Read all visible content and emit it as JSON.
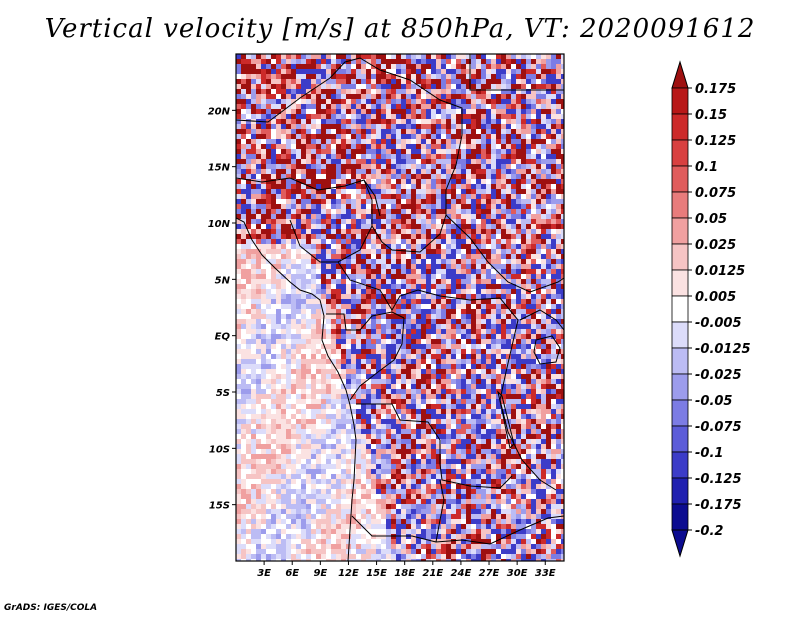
{
  "title": "Vertical velocity [m/s] at 850hPa, VT: 2020091612",
  "credit": "GrADS: IGES/COLA",
  "map": {
    "lon_labels": [
      "3E",
      "6E",
      "9E",
      "12E",
      "15E",
      "18E",
      "21E",
      "24E",
      "27E",
      "30E",
      "33E"
    ],
    "lat_labels": [
      "20N",
      "15N",
      "10N",
      "5N",
      "EQ",
      "5S",
      "10S",
      "15S"
    ],
    "lon_range": [
      0,
      35
    ],
    "lat_range": [
      -20,
      25
    ]
  },
  "colorbar": {
    "labels": [
      "0.175",
      "0.15",
      "0.125",
      "0.1",
      "0.075",
      "0.05",
      "0.025",
      "0.0125",
      "0.005",
      "-0.005",
      "-0.0125",
      "-0.025",
      "-0.05",
      "-0.075",
      "-0.1",
      "-0.125",
      "-0.175",
      "-0.2"
    ],
    "colors": [
      "#9e1010",
      "#b81818",
      "#cc2a2a",
      "#d84040",
      "#e05c5c",
      "#e87c7c",
      "#f0a0a0",
      "#f6c4c4",
      "#fbe2e2",
      "#ffffff",
      "#dcdcfa",
      "#bcbcf4",
      "#9c9cec",
      "#7c7ce4",
      "#5c5cd8",
      "#3c3cc8",
      "#2020b0",
      "#0c0c90"
    ]
  },
  "chart_data": {
    "type": "heatmap",
    "title": "Vertical velocity [m/s] at 850hPa, VT: 2020091612",
    "variable": "Vertical velocity",
    "units": "m/s",
    "level": "850hPa",
    "valid_time": "2020091612",
    "x_ticks": [
      "3E",
      "6E",
      "9E",
      "12E",
      "15E",
      "18E",
      "21E",
      "24E",
      "27E",
      "30E",
      "33E"
    ],
    "y_ticks": [
      "20N",
      "15N",
      "10N",
      "5N",
      "EQ",
      "5S",
      "10S",
      "15S"
    ],
    "color_levels": [
      0.175,
      0.15,
      0.125,
      0.1,
      0.075,
      0.05,
      0.025,
      0.0125,
      0.005,
      -0.005,
      -0.0125,
      -0.025,
      -0.05,
      -0.075,
      -0.1,
      -0.125,
      -0.175,
      -0.2
    ]
  }
}
